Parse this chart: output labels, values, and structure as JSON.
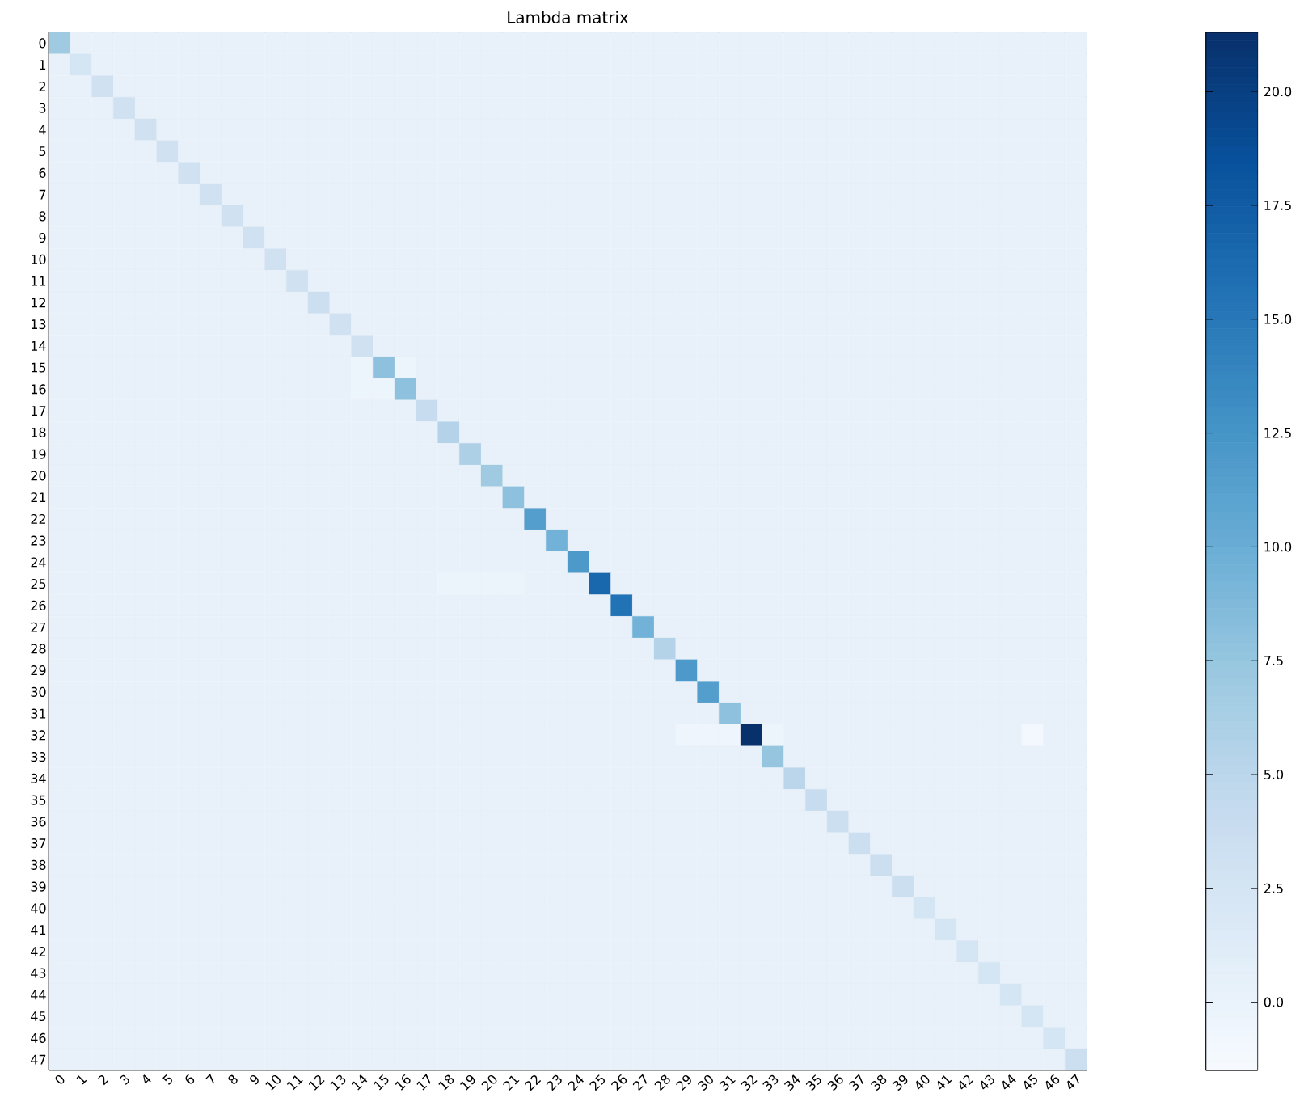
{
  "chart_data": {
    "type": "heatmap",
    "title": "Lambda matrix",
    "categories": [
      "0",
      "1",
      "2",
      "3",
      "4",
      "5",
      "6",
      "7",
      "8",
      "9",
      "10",
      "11",
      "12",
      "13",
      "14",
      "15",
      "16",
      "17",
      "18",
      "19",
      "20",
      "21",
      "22",
      "23",
      "24",
      "25",
      "26",
      "27",
      "28",
      "29",
      "30",
      "31",
      "32",
      "33",
      "34",
      "35",
      "36",
      "37",
      "38",
      "39",
      "40",
      "41",
      "42",
      "43",
      "44",
      "45",
      "46",
      "47"
    ],
    "y_categories": [
      "0",
      "1",
      "2",
      "3",
      "4",
      "5",
      "6",
      "7",
      "8",
      "9",
      "10",
      "11",
      "12",
      "13",
      "14",
      "15",
      "16",
      "17",
      "18",
      "19",
      "20",
      "21",
      "22",
      "23",
      "24",
      "25",
      "26",
      "27",
      "28",
      "29",
      "30",
      "31",
      "32",
      "33",
      "34",
      "35",
      "36",
      "37",
      "38",
      "39",
      "40",
      "41",
      "42",
      "43",
      "44",
      "45",
      "46",
      "47"
    ],
    "clim": [
      -1.5,
      21.3
    ],
    "cticks": [
      {
        "value": 0,
        "label": "0.0"
      },
      {
        "value": 2.5,
        "label": "2.5"
      },
      {
        "value": 5,
        "label": "5.0"
      },
      {
        "value": 7.5,
        "label": "7.5"
      },
      {
        "value": 10,
        "label": "10.0"
      },
      {
        "value": 12.5,
        "label": "12.5"
      },
      {
        "value": 15,
        "label": "15.0"
      },
      {
        "value": 17.5,
        "label": "17.5"
      },
      {
        "value": 20,
        "label": "20.0"
      }
    ],
    "cells": [
      [
        7,
        0.2,
        0.2,
        0.2,
        0.2,
        0.2,
        0.2,
        0.2,
        0.2,
        0.2,
        0.2,
        0.2,
        0.2,
        0.2,
        0.2,
        0.2,
        0.2,
        0.2,
        0.2,
        0.2,
        0.2,
        0.2,
        0.2,
        0.2,
        0.2,
        0.2,
        0.2,
        0.2,
        0.2,
        0.2,
        0.2,
        0.2,
        0.2,
        0.2,
        0.2,
        0.2,
        0.2,
        0.2,
        0.2,
        0.2,
        0.2,
        0.2,
        0.2,
        0.2,
        0.2,
        0.2,
        0.2,
        0.2
      ],
      [
        0.2,
        2.5,
        0.2,
        0.2,
        0.2,
        0.2,
        0.2,
        0.2,
        0.2,
        0.2,
        0.2,
        0.2,
        0.2,
        0.2,
        0.2,
        0.2,
        0.2,
        0.2,
        0.2,
        0.2,
        0.2,
        0.2,
        0.2,
        0.2,
        0.2,
        0.2,
        0.2,
        0.2,
        0.2,
        0.2,
        0.2,
        0.2,
        0.2,
        0.2,
        0.2,
        0.2,
        0.2,
        0.2,
        0.2,
        0.2,
        0.2,
        0.2,
        0.2,
        0.2,
        0.2,
        0.2,
        0.2,
        0.2
      ],
      [
        0.2,
        0.2,
        3,
        0.2,
        0.2,
        0.2,
        0.2,
        0.2,
        0.2,
        0.2,
        0.2,
        0.2,
        0.2,
        0.2,
        0.2,
        0.2,
        0.2,
        0.2,
        0.2,
        0.2,
        0.2,
        0.2,
        0.2,
        0.2,
        0.2,
        0.2,
        0.2,
        0.2,
        0.2,
        0.2,
        0.2,
        0.2,
        0.2,
        0.2,
        0.2,
        0.2,
        0.2,
        0.2,
        0.2,
        0.2,
        0.2,
        0.2,
        0.2,
        0.2,
        0.2,
        0.2,
        0.2,
        0.2
      ],
      [
        0.2,
        0.2,
        0.2,
        3,
        0.2,
        0.2,
        0.2,
        0.2,
        0.2,
        0.2,
        0.2,
        0.2,
        0.2,
        0.2,
        0.2,
        0.2,
        0.2,
        0.2,
        0.2,
        0.2,
        0.2,
        0.2,
        0.2,
        0.2,
        0.2,
        0.2,
        0.2,
        0.2,
        0.2,
        0.2,
        0.2,
        0.2,
        0.2,
        0.2,
        0.2,
        0.2,
        0.2,
        0.2,
        0.2,
        0.2,
        0.2,
        0.2,
        0.2,
        0.2,
        0.2,
        0.2,
        0.2,
        0.2
      ],
      [
        0.2,
        0.2,
        0.2,
        0.2,
        3,
        0.2,
        0.2,
        0.2,
        0.2,
        0.2,
        0.2,
        0.2,
        0.2,
        0.2,
        0.2,
        0.2,
        0.2,
        0.2,
        0.2,
        0.2,
        0.2,
        0.2,
        0.2,
        0.2,
        0.2,
        0.2,
        0.2,
        0.2,
        0.2,
        0.2,
        0.2,
        0.2,
        0.2,
        0.2,
        0.2,
        0.2,
        0.2,
        0.2,
        0.2,
        0.2,
        0.2,
        0.2,
        0.2,
        0.2,
        0.2,
        0.2,
        0.2,
        0.2
      ],
      [
        0.2,
        0.2,
        0.2,
        0.2,
        0.2,
        3,
        0.2,
        0.2,
        0.2,
        0.2,
        0.2,
        0.2,
        0.2,
        0.2,
        0.2,
        0.2,
        0.2,
        0.2,
        0.2,
        0.2,
        0.2,
        0.2,
        0.2,
        0.2,
        0.2,
        0.2,
        0.2,
        0.2,
        0.2,
        0.2,
        0.2,
        0.2,
        0.2,
        0.2,
        0.2,
        0.2,
        0.2,
        0.2,
        0.2,
        0.2,
        0.2,
        0.2,
        0.2,
        0.2,
        0.2,
        0.2,
        0.2,
        0.2
      ],
      [
        0.2,
        0.2,
        0.2,
        0.2,
        0.2,
        0.2,
        3,
        0.2,
        0.2,
        0.2,
        0.2,
        0.2,
        0.2,
        0.2,
        0.2,
        0.2,
        0.2,
        0.2,
        0.2,
        0.2,
        0.2,
        0.2,
        0.2,
        0.2,
        0.2,
        0.2,
        0.2,
        0.2,
        0.2,
        0.2,
        0.2,
        0.2,
        0.2,
        0.2,
        0.2,
        0.2,
        0.2,
        0.2,
        0.2,
        0.2,
        0.2,
        0.2,
        0.2,
        0.2,
        0.2,
        0.2,
        0.2,
        0.2
      ],
      [
        0.2,
        0.2,
        0.2,
        0.2,
        0.2,
        0.2,
        0.2,
        3,
        0.2,
        0.2,
        0.2,
        0.2,
        0.2,
        0.2,
        0.2,
        0.2,
        0.2,
        0.2,
        0.2,
        0.2,
        0.2,
        0.2,
        0.2,
        0.2,
        0.2,
        0.2,
        0.2,
        0.2,
        0.2,
        0.2,
        0.2,
        0.2,
        0.2,
        0.2,
        0.2,
        0.2,
        0.2,
        0.2,
        0.2,
        0.2,
        0.2,
        0.2,
        0.2,
        0.2,
        0.2,
        0.2,
        0.2,
        0.2
      ],
      [
        0.2,
        0.2,
        0.2,
        0.2,
        0.2,
        0.2,
        0.2,
        0.2,
        3,
        0.2,
        0.2,
        0.2,
        0.2,
        0.2,
        0.2,
        0.2,
        0.2,
        0.2,
        0.2,
        0.2,
        0.2,
        0.2,
        0.2,
        0.2,
        0.2,
        0.2,
        0.2,
        0.2,
        0.2,
        0.2,
        0.2,
        0.2,
        0.2,
        0.2,
        0.2,
        0.2,
        0.2,
        0.2,
        0.2,
        0.2,
        0.2,
        0.2,
        0.2,
        0.2,
        0.2,
        0.2,
        0.2,
        0.2
      ],
      [
        0.2,
        0.2,
        0.2,
        0.2,
        0.2,
        0.2,
        0.2,
        0.2,
        0.2,
        3,
        0.2,
        0.2,
        0.2,
        0.2,
        0.2,
        0.2,
        0.2,
        0.2,
        0.2,
        0.2,
        0.2,
        0.2,
        0.2,
        0.2,
        0.2,
        0.2,
        0.2,
        0.2,
        0.2,
        0.2,
        0.2,
        0.2,
        0.2,
        0.2,
        0.2,
        0.2,
        0.2,
        0.2,
        0.2,
        0.2,
        0.2,
        0.2,
        0.2,
        0.2,
        0.2,
        0.2,
        0.2,
        0.2
      ],
      [
        0.2,
        0.2,
        0.2,
        0.2,
        0.2,
        0.2,
        0.2,
        0.2,
        0.2,
        0.2,
        3,
        0.2,
        0.2,
        0.2,
        0.2,
        0.2,
        0.2,
        0.2,
        0.2,
        0.2,
        0.2,
        0.2,
        0.2,
        0.2,
        0.2,
        0.2,
        0.2,
        0.2,
        0.2,
        0.2,
        0.2,
        0.2,
        0.2,
        0.2,
        0.2,
        0.2,
        0.2,
        0.2,
        0.2,
        0.2,
        0.2,
        0.2,
        0.2,
        0.2,
        0.2,
        0.2,
        0.2,
        0.2
      ],
      [
        0.2,
        0.2,
        0.2,
        0.2,
        0.2,
        0.2,
        0.2,
        0.2,
        0.2,
        0.2,
        0.2,
        3,
        0.2,
        0.2,
        0.2,
        0.2,
        0.2,
        0.2,
        0.2,
        0.2,
        0.2,
        0.2,
        0.2,
        0.2,
        0.2,
        0.2,
        0.2,
        0.2,
        0.2,
        0.2,
        0.2,
        0.2,
        0.2,
        0.2,
        0.2,
        0.2,
        0.2,
        0.2,
        0.2,
        0.2,
        0.2,
        0.2,
        0.2,
        0.2,
        0.2,
        0.2,
        0.2,
        0.2
      ],
      [
        0.2,
        0.2,
        0.2,
        0.2,
        0.2,
        0.2,
        0.2,
        0.2,
        0.2,
        0.2,
        0.2,
        0.2,
        3.5,
        0.2,
        0.2,
        0.2,
        0.2,
        0.2,
        0.2,
        0.2,
        0.2,
        0.2,
        0.2,
        0.2,
        0.2,
        0.2,
        0.2,
        0.2,
        0.2,
        0.2,
        0.2,
        0.2,
        0.2,
        0.2,
        0.2,
        0.2,
        0.2,
        0.2,
        0.2,
        0.2,
        0.2,
        0.2,
        0.2,
        0.2,
        0.2,
        0.2,
        0.2,
        0.2
      ],
      [
        0.2,
        0.2,
        0.2,
        0.2,
        0.2,
        0.2,
        0.2,
        0.2,
        0.2,
        0.2,
        0.2,
        0.2,
        0.2,
        3,
        0.2,
        0.2,
        0.2,
        0.2,
        0.2,
        0.2,
        0.2,
        0.2,
        0.2,
        0.2,
        0.2,
        0.2,
        0.2,
        0.2,
        0.2,
        0.2,
        0.2,
        0.2,
        0.2,
        0.2,
        0.2,
        0.2,
        0.2,
        0.2,
        0.2,
        0.2,
        0.2,
        0.2,
        0.2,
        0.2,
        0.2,
        0.2,
        0.2,
        0.2
      ],
      [
        0.2,
        0.2,
        0.2,
        0.2,
        0.2,
        0.2,
        0.2,
        0.2,
        0.2,
        0.2,
        0.2,
        0.2,
        0.2,
        0.2,
        3,
        0.2,
        0.2,
        0.2,
        0.2,
        0.2,
        0.2,
        0.2,
        0.2,
        0.2,
        0.2,
        0.2,
        0.2,
        0.2,
        0.2,
        0.2,
        0.2,
        0.2,
        0.2,
        0.2,
        0.2,
        0.2,
        0.2,
        0.2,
        0.2,
        0.2,
        0.2,
        0.2,
        0.2,
        0.2,
        0.2,
        0.2,
        0.2,
        0.2
      ],
      [
        0.2,
        0.2,
        0.2,
        0.2,
        0.2,
        0.2,
        0.2,
        0.2,
        0.2,
        0.2,
        0.2,
        0.2,
        0.2,
        0.2,
        -0.3,
        8,
        -0.3,
        0.2,
        0.2,
        0.2,
        0.2,
        0.2,
        0.2,
        0.2,
        0.2,
        0.2,
        0.2,
        0.2,
        0.2,
        0.2,
        0.2,
        0.2,
        0.2,
        0.2,
        0.2,
        0.2,
        0.2,
        0.2,
        0.2,
        0.2,
        0.2,
        0.2,
        0.2,
        0.2,
        0.2,
        0.2,
        0.2,
        0.2
      ],
      [
        0.2,
        0.2,
        0.2,
        0.2,
        0.2,
        0.2,
        0.2,
        0.2,
        0.2,
        0.2,
        0.2,
        0.2,
        0.2,
        0.2,
        -0.3,
        -0.3,
        8,
        0.2,
        0.2,
        0.2,
        0.2,
        0.2,
        0.2,
        0.2,
        0.2,
        0.2,
        0.2,
        0.2,
        0.2,
        0.2,
        0.2,
        0.2,
        0.2,
        0.2,
        0.2,
        0.2,
        0.2,
        0.2,
        0.2,
        0.2,
        0.2,
        0.2,
        0.2,
        0.2,
        0.2,
        0.2,
        0.2,
        0.2
      ],
      [
        0.2,
        0.2,
        0.2,
        0.2,
        0.2,
        0.2,
        0.2,
        0.2,
        0.2,
        0.2,
        0.2,
        0.2,
        0.2,
        0.2,
        0.2,
        0.2,
        0.2,
        4,
        0.2,
        0.2,
        0.2,
        0.2,
        0.2,
        0.2,
        0.2,
        0.2,
        0.2,
        0.2,
        0.2,
        0.2,
        0.2,
        0.2,
        0.2,
        0.2,
        0.2,
        0.2,
        0.2,
        0.2,
        0.2,
        0.2,
        0.2,
        0.2,
        0.2,
        0.2,
        0.2,
        0.2,
        0.2,
        0.2
      ],
      [
        0.2,
        0.2,
        0.2,
        0.2,
        0.2,
        0.2,
        0.2,
        0.2,
        0.2,
        0.2,
        0.2,
        0.2,
        0.2,
        0.2,
        0.2,
        0.2,
        0.2,
        0.2,
        5.5,
        0.2,
        0.2,
        0.2,
        0.2,
        0.2,
        0.2,
        0.2,
        0.2,
        0.2,
        0.2,
        0.2,
        0.2,
        0.2,
        0.2,
        0.2,
        0.2,
        0.2,
        0.2,
        0.2,
        0.2,
        0.2,
        0.2,
        0.2,
        0.2,
        0.2,
        0.2,
        0.2,
        0.2,
        0.2
      ],
      [
        0.2,
        0.2,
        0.2,
        0.2,
        0.2,
        0.2,
        0.2,
        0.2,
        0.2,
        0.2,
        0.2,
        0.2,
        0.2,
        0.2,
        0.2,
        0.2,
        0.2,
        0.2,
        0.2,
        6,
        0.2,
        0.2,
        0.2,
        0.2,
        0.2,
        0.2,
        0.2,
        0.2,
        0.2,
        0.2,
        0.2,
        0.2,
        0.2,
        0.2,
        0.2,
        0.2,
        0.2,
        0.2,
        0.2,
        0.2,
        0.2,
        0.2,
        0.2,
        0.2,
        0.2,
        0.2,
        0.2,
        0.2
      ],
      [
        0.2,
        0.2,
        0.2,
        0.2,
        0.2,
        0.2,
        0.2,
        0.2,
        0.2,
        0.2,
        0.2,
        0.2,
        0.2,
        0.2,
        0.2,
        0.2,
        0.2,
        0.2,
        0.2,
        0.2,
        7,
        0.2,
        0.2,
        0.2,
        0.2,
        0.2,
        0.2,
        0.2,
        0.2,
        0.2,
        0.2,
        0.2,
        0.2,
        0.2,
        0.2,
        0.2,
        0.2,
        0.2,
        0.2,
        0.2,
        0.2,
        0.2,
        0.2,
        0.2,
        0.2,
        0.2,
        0.2,
        0.2
      ],
      [
        0.2,
        0.2,
        0.2,
        0.2,
        0.2,
        0.2,
        0.2,
        0.2,
        0.2,
        0.2,
        0.2,
        0.2,
        0.2,
        0.2,
        0.2,
        0.2,
        0.2,
        0.2,
        0.2,
        0.2,
        0.2,
        8,
        0.2,
        0.2,
        0.2,
        0.2,
        0.2,
        0.2,
        0.2,
        0.2,
        0.2,
        0.2,
        0.2,
        0.2,
        0.2,
        0.2,
        0.2,
        0.2,
        0.2,
        0.2,
        0.2,
        0.2,
        0.2,
        0.2,
        0.2,
        0.2,
        0.2,
        0.2
      ],
      [
        0.2,
        0.2,
        0.2,
        0.2,
        0.2,
        0.2,
        0.2,
        0.2,
        0.2,
        0.2,
        0.2,
        0.2,
        0.2,
        0.2,
        0.2,
        0.2,
        0.2,
        0.2,
        0.2,
        0.2,
        0.2,
        0.2,
        11.5,
        0.2,
        0.2,
        0.2,
        0.2,
        0.2,
        0.2,
        0.2,
        0.2,
        0.2,
        0.2,
        0.2,
        0.2,
        0.2,
        0.2,
        0.2,
        0.2,
        0.2,
        0.2,
        0.2,
        0.2,
        0.2,
        0.2,
        0.2,
        0.2,
        0.2
      ],
      [
        0.2,
        0.2,
        0.2,
        0.2,
        0.2,
        0.2,
        0.2,
        0.2,
        0.2,
        0.2,
        0.2,
        0.2,
        0.2,
        0.2,
        0.2,
        0.2,
        0.2,
        0.2,
        0.2,
        0.2,
        0.2,
        0.2,
        0.2,
        9.5,
        0.2,
        0.2,
        0.2,
        0.2,
        0.2,
        0.2,
        0.2,
        0.2,
        0.2,
        0.2,
        0.2,
        0.2,
        0.2,
        0.2,
        0.2,
        0.2,
        0.2,
        0.2,
        0.2,
        0.2,
        0.2,
        0.2,
        0.2,
        0.2
      ],
      [
        0.2,
        0.2,
        0.2,
        0.2,
        0.2,
        0.2,
        0.2,
        0.2,
        0.2,
        0.2,
        0.2,
        0.2,
        0.2,
        0.2,
        0.2,
        0.2,
        0.2,
        0.2,
        0.2,
        0.2,
        0.2,
        0.2,
        0.2,
        0.2,
        12,
        0.2,
        0.2,
        0.2,
        0.2,
        0.2,
        0.2,
        0.2,
        0.2,
        0.2,
        0.2,
        0.2,
        0.2,
        0.2,
        0.2,
        0.2,
        0.2,
        0.2,
        0.2,
        0.2,
        0.2,
        0.2,
        0.2,
        0.2
      ],
      [
        0.2,
        0.2,
        0.2,
        0.2,
        0.2,
        0.2,
        0.2,
        0.2,
        0.2,
        0.2,
        0.2,
        0.2,
        0.2,
        0.2,
        0.2,
        0.2,
        0.2,
        0.2,
        -0.2,
        -0.2,
        -0.2,
        -0.2,
        0.2,
        0.2,
        0.2,
        16.5,
        0.2,
        0.2,
        0.2,
        0.2,
        0.2,
        0.2,
        0.2,
        0.2,
        0.2,
        0.2,
        0.2,
        0.2,
        0.2,
        0.2,
        0.2,
        0.2,
        0.2,
        0.2,
        0.2,
        0.2,
        0.2,
        0.2
      ],
      [
        0.2,
        0.2,
        0.2,
        0.2,
        0.2,
        0.2,
        0.2,
        0.2,
        0.2,
        0.2,
        0.2,
        0.2,
        0.2,
        0.2,
        0.2,
        0.2,
        0.2,
        0.2,
        0.2,
        0.2,
        0.2,
        0.2,
        0.2,
        0.2,
        0.2,
        0.2,
        15.5,
        0.2,
        0.2,
        0.2,
        0.2,
        0.2,
        0.2,
        0.2,
        0.2,
        0.2,
        0.2,
        0.2,
        0.2,
        0.2,
        0.2,
        0.2,
        0.2,
        0.2,
        0.2,
        0.2,
        0.2,
        0.2
      ],
      [
        0.2,
        0.2,
        0.2,
        0.2,
        0.2,
        0.2,
        0.2,
        0.2,
        0.2,
        0.2,
        0.2,
        0.2,
        0.2,
        0.2,
        0.2,
        0.2,
        0.2,
        0.2,
        0.2,
        0.2,
        0.2,
        0.2,
        0.2,
        0.2,
        0.2,
        0.2,
        0.2,
        9.5,
        0.2,
        0.2,
        0.2,
        0.2,
        0.2,
        0.2,
        0.2,
        0.2,
        0.2,
        0.2,
        0.2,
        0.2,
        0.2,
        0.2,
        0.2,
        0.2,
        0.2,
        0.2,
        0.2,
        0.2
      ],
      [
        0.2,
        0.2,
        0.2,
        0.2,
        0.2,
        0.2,
        0.2,
        0.2,
        0.2,
        0.2,
        0.2,
        0.2,
        0.2,
        0.2,
        0.2,
        0.2,
        0.2,
        0.2,
        0.2,
        0.2,
        0.2,
        0.2,
        0.2,
        0.2,
        0.2,
        0.2,
        0.2,
        0.2,
        5.5,
        0.2,
        0.2,
        0.2,
        0.2,
        0.2,
        0.2,
        0.2,
        0.2,
        0.2,
        0.2,
        0.2,
        0.2,
        0.2,
        0.2,
        0.2,
        0.2,
        0.2,
        0.2,
        0.2
      ],
      [
        0.2,
        0.2,
        0.2,
        0.2,
        0.2,
        0.2,
        0.2,
        0.2,
        0.2,
        0.2,
        0.2,
        0.2,
        0.2,
        0.2,
        0.2,
        0.2,
        0.2,
        0.2,
        0.2,
        0.2,
        0.2,
        0.2,
        0.2,
        0.2,
        0.2,
        0.2,
        0.2,
        0.2,
        0.2,
        12,
        0.2,
        0.2,
        0.2,
        0.2,
        0.2,
        0.2,
        0.2,
        0.2,
        0.2,
        0.2,
        0.2,
        0.2,
        0.2,
        0.2,
        0.2,
        0.2,
        0.2,
        0.2
      ],
      [
        0.2,
        0.2,
        0.2,
        0.2,
        0.2,
        0.2,
        0.2,
        0.2,
        0.2,
        0.2,
        0.2,
        0.2,
        0.2,
        0.2,
        0.2,
        0.2,
        0.2,
        0.2,
        0.2,
        0.2,
        0.2,
        0.2,
        0.2,
        0.2,
        0.2,
        0.2,
        0.2,
        0.2,
        0.2,
        0.2,
        11.5,
        0.2,
        0.2,
        0.2,
        0.2,
        0.2,
        0.2,
        0.2,
        0.2,
        0.2,
        0.2,
        0.2,
        0.2,
        0.2,
        0.2,
        0.2,
        0.2,
        0.2
      ],
      [
        0.2,
        0.2,
        0.2,
        0.2,
        0.2,
        0.2,
        0.2,
        0.2,
        0.2,
        0.2,
        0.2,
        0.2,
        0.2,
        0.2,
        0.2,
        0.2,
        0.2,
        0.2,
        0.2,
        0.2,
        0.2,
        0.2,
        0.2,
        0.2,
        0.2,
        0.2,
        0.2,
        0.2,
        0.2,
        0.2,
        0.2,
        8,
        0.2,
        0.2,
        0.2,
        0.2,
        0.2,
        0.2,
        0.2,
        0.2,
        0.2,
        0.2,
        0.2,
        0.2,
        0.2,
        0.2,
        0.2,
        0.2
      ],
      [
        0.2,
        0.2,
        0.2,
        0.2,
        0.2,
        0.2,
        0.2,
        0.2,
        0.2,
        0.2,
        0.2,
        0.2,
        0.2,
        0.2,
        0.2,
        0.2,
        0.2,
        0.2,
        0.2,
        0.2,
        0.2,
        0.2,
        0.2,
        0.2,
        0.2,
        0.2,
        0.2,
        0.2,
        0.2,
        -0.5,
        -0.5,
        -0.5,
        21.3,
        -0.3,
        0.2,
        0.2,
        0.2,
        0.2,
        0.2,
        0.2,
        0.2,
        0.2,
        0.2,
        0.2,
        0.2,
        -1,
        0.2,
        0.2
      ],
      [
        0.2,
        0.2,
        0.2,
        0.2,
        0.2,
        0.2,
        0.2,
        0.2,
        0.2,
        0.2,
        0.2,
        0.2,
        0.2,
        0.2,
        0.2,
        0.2,
        0.2,
        0.2,
        0.2,
        0.2,
        0.2,
        0.2,
        0.2,
        0.2,
        0.2,
        0.2,
        0.2,
        0.2,
        0.2,
        0.2,
        0.2,
        0.2,
        0.2,
        7.5,
        0.2,
        0.2,
        0.2,
        0.2,
        0.2,
        0.2,
        0.2,
        0.2,
        0.2,
        0.2,
        0.2,
        0.2,
        0.2,
        0.2
      ],
      [
        0.2,
        0.2,
        0.2,
        0.2,
        0.2,
        0.2,
        0.2,
        0.2,
        0.2,
        0.2,
        0.2,
        0.2,
        0.2,
        0.2,
        0.2,
        0.2,
        0.2,
        0.2,
        0.2,
        0.2,
        0.2,
        0.2,
        0.2,
        0.2,
        0.2,
        0.2,
        0.2,
        0.2,
        0.2,
        0.2,
        0.2,
        0.2,
        0.2,
        0.2,
        5,
        0.2,
        0.2,
        0.2,
        0.2,
        0.2,
        0.2,
        0.2,
        0.2,
        0.2,
        0.2,
        0.2,
        0.2,
        0.2
      ],
      [
        0.2,
        0.2,
        0.2,
        0.2,
        0.2,
        0.2,
        0.2,
        0.2,
        0.2,
        0.2,
        0.2,
        0.2,
        0.2,
        0.2,
        0.2,
        0.2,
        0.2,
        0.2,
        0.2,
        0.2,
        0.2,
        0.2,
        0.2,
        0.2,
        0.2,
        0.2,
        0.2,
        0.2,
        0.2,
        0.2,
        0.2,
        0.2,
        0.2,
        0.2,
        0.2,
        4,
        0.2,
        0.2,
        0.2,
        0.2,
        0.2,
        0.2,
        0.2,
        0.2,
        0.2,
        0.2,
        0.2,
        0.2
      ],
      [
        0.2,
        0.2,
        0.2,
        0.2,
        0.2,
        0.2,
        0.2,
        0.2,
        0.2,
        0.2,
        0.2,
        0.2,
        0.2,
        0.2,
        0.2,
        0.2,
        0.2,
        0.2,
        0.2,
        0.2,
        0.2,
        0.2,
        0.2,
        0.2,
        0.2,
        0.2,
        0.2,
        0.2,
        0.2,
        0.2,
        0.2,
        0.2,
        0.2,
        0.2,
        0.2,
        0.2,
        3.5,
        0.2,
        0.2,
        0.2,
        0.2,
        0.2,
        0.2,
        0.2,
        0.2,
        0.2,
        0.2,
        0.2
      ],
      [
        0.2,
        0.2,
        0.2,
        0.2,
        0.2,
        0.2,
        0.2,
        0.2,
        0.2,
        0.2,
        0.2,
        0.2,
        0.2,
        0.2,
        0.2,
        0.2,
        0.2,
        0.2,
        0.2,
        0.2,
        0.2,
        0.2,
        0.2,
        0.2,
        0.2,
        0.2,
        0.2,
        0.2,
        0.2,
        0.2,
        0.2,
        0.2,
        0.2,
        0.2,
        0.2,
        0.2,
        0.2,
        3.5,
        0.2,
        0.2,
        0.2,
        0.2,
        0.2,
        0.2,
        0.2,
        0.2,
        0.2,
        0.2
      ],
      [
        0.2,
        0.2,
        0.2,
        0.2,
        0.2,
        0.2,
        0.2,
        0.2,
        0.2,
        0.2,
        0.2,
        0.2,
        0.2,
        0.2,
        0.2,
        0.2,
        0.2,
        0.2,
        0.2,
        0.2,
        0.2,
        0.2,
        0.2,
        0.2,
        0.2,
        0.2,
        0.2,
        0.2,
        0.2,
        0.2,
        0.2,
        0.2,
        0.2,
        0.2,
        0.2,
        0.2,
        0.2,
        0.2,
        3.5,
        0.2,
        0.2,
        0.2,
        0.2,
        0.2,
        0.2,
        0.2,
        0.2,
        0.2
      ],
      [
        0.2,
        0.2,
        0.2,
        0.2,
        0.2,
        0.2,
        0.2,
        0.2,
        0.2,
        0.2,
        0.2,
        0.2,
        0.2,
        0.2,
        0.2,
        0.2,
        0.2,
        0.2,
        0.2,
        0.2,
        0.2,
        0.2,
        0.2,
        0.2,
        0.2,
        0.2,
        0.2,
        0.2,
        0.2,
        0.2,
        0.2,
        0.2,
        0.2,
        0.2,
        0.2,
        0.2,
        0.2,
        0.2,
        0.2,
        3.5,
        0.2,
        0.2,
        0.2,
        0.2,
        0.2,
        0.2,
        0.2,
        0.2
      ],
      [
        0.2,
        0.2,
        0.2,
        0.2,
        0.2,
        0.2,
        0.2,
        0.2,
        0.2,
        0.2,
        0.2,
        0.2,
        0.2,
        0.2,
        0.2,
        0.2,
        0.2,
        0.2,
        0.2,
        0.2,
        0.2,
        0.2,
        0.2,
        0.2,
        0.2,
        0.2,
        0.2,
        0.2,
        0.2,
        0.2,
        0.2,
        0.2,
        0.2,
        0.2,
        0.2,
        0.2,
        0.2,
        0.2,
        0.2,
        0.2,
        2.5,
        0.2,
        0.2,
        0.2,
        0.2,
        0.2,
        0.2,
        0.2
      ],
      [
        0.2,
        0.2,
        0.2,
        0.2,
        0.2,
        0.2,
        0.2,
        0.2,
        0.2,
        0.2,
        0.2,
        0.2,
        0.2,
        0.2,
        0.2,
        0.2,
        0.2,
        0.2,
        0.2,
        0.2,
        0.2,
        0.2,
        0.2,
        0.2,
        0.2,
        0.2,
        0.2,
        0.2,
        0.2,
        0.2,
        0.2,
        0.2,
        0.2,
        0.2,
        0.2,
        0.2,
        0.2,
        0.2,
        0.2,
        0.2,
        0.2,
        2.5,
        0.2,
        0.2,
        0.2,
        0.2,
        0.2,
        0.2
      ],
      [
        0.2,
        0.2,
        0.2,
        0.2,
        0.2,
        0.2,
        0.2,
        0.2,
        0.2,
        0.2,
        0.2,
        0.2,
        0.2,
        0.2,
        0.2,
        0.2,
        0.2,
        0.2,
        0.2,
        0.2,
        0.2,
        0.2,
        0.2,
        0.2,
        0.2,
        0.2,
        0.2,
        0.2,
        0.2,
        0.2,
        0.2,
        0.2,
        0.2,
        0.2,
        0.2,
        0.2,
        0.2,
        0.2,
        0.2,
        0.2,
        0.2,
        0.2,
        2.5,
        0.2,
        0.2,
        0.2,
        0.2,
        0.2
      ],
      [
        0.2,
        0.2,
        0.2,
        0.2,
        0.2,
        0.2,
        0.2,
        0.2,
        0.2,
        0.2,
        0.2,
        0.2,
        0.2,
        0.2,
        0.2,
        0.2,
        0.2,
        0.2,
        0.2,
        0.2,
        0.2,
        0.2,
        0.2,
        0.2,
        0.2,
        0.2,
        0.2,
        0.2,
        0.2,
        0.2,
        0.2,
        0.2,
        0.2,
        0.2,
        0.2,
        0.2,
        0.2,
        0.2,
        0.2,
        0.2,
        0.2,
        0.2,
        0.2,
        2.5,
        0.2,
        0.2,
        0.2,
        0.2
      ],
      [
        0.2,
        0.2,
        0.2,
        0.2,
        0.2,
        0.2,
        0.2,
        0.2,
        0.2,
        0.2,
        0.2,
        0.2,
        0.2,
        0.2,
        0.2,
        0.2,
        0.2,
        0.2,
        0.2,
        0.2,
        0.2,
        0.2,
        0.2,
        0.2,
        0.2,
        0.2,
        0.2,
        0.2,
        0.2,
        0.2,
        0.2,
        0.2,
        0.2,
        0.2,
        0.2,
        0.2,
        0.2,
        0.2,
        0.2,
        0.2,
        0.2,
        0.2,
        0.2,
        0.2,
        2.5,
        0.2,
        0.2,
        0.2
      ],
      [
        0.2,
        0.2,
        0.2,
        0.2,
        0.2,
        0.2,
        0.2,
        0.2,
        0.2,
        0.2,
        0.2,
        0.2,
        0.2,
        0.2,
        0.2,
        0.2,
        0.2,
        0.2,
        0.2,
        0.2,
        0.2,
        0.2,
        0.2,
        0.2,
        0.2,
        0.2,
        0.2,
        0.2,
        0.2,
        0.2,
        0.2,
        0.2,
        0.2,
        0.2,
        0.2,
        0.2,
        0.2,
        0.2,
        0.2,
        0.2,
        0.2,
        0.2,
        0.2,
        0.2,
        0.2,
        2.5,
        0.2,
        0.2
      ],
      [
        0.2,
        0.2,
        0.2,
        0.2,
        0.2,
        0.2,
        0.2,
        0.2,
        0.2,
        0.2,
        0.2,
        0.2,
        0.2,
        0.2,
        0.2,
        0.2,
        0.2,
        0.2,
        0.2,
        0.2,
        0.2,
        0.2,
        0.2,
        0.2,
        0.2,
        0.2,
        0.2,
        0.2,
        0.2,
        0.2,
        0.2,
        0.2,
        0.2,
        0.2,
        0.2,
        0.2,
        0.2,
        0.2,
        0.2,
        0.2,
        0.2,
        0.2,
        0.2,
        0.2,
        0.2,
        0.2,
        2.5,
        0.2
      ],
      [
        0.2,
        0.2,
        0.2,
        0.2,
        0.2,
        0.2,
        0.2,
        0.2,
        0.2,
        0.2,
        0.2,
        0.2,
        0.2,
        0.2,
        0.2,
        0.2,
        0.2,
        0.2,
        0.2,
        0.2,
        0.2,
        0.2,
        0.2,
        0.2,
        0.2,
        0.2,
        0.2,
        0.2,
        0.2,
        0.2,
        0.2,
        0.2,
        0.2,
        0.2,
        0.2,
        0.2,
        0.2,
        0.2,
        0.2,
        0.2,
        0.2,
        0.2,
        0.2,
        0.2,
        0.2,
        0.2,
        0.2,
        3.5
      ]
    ]
  }
}
